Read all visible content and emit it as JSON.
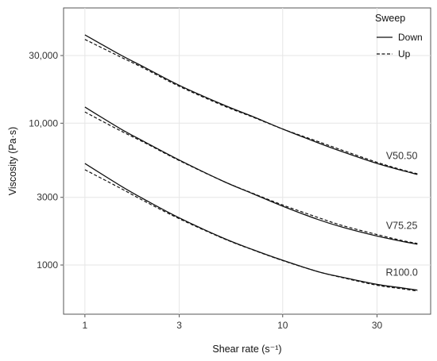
{
  "chart_data": {
    "type": "line",
    "xlabel": "Shear rate (s⁻¹)",
    "ylabel": "Viscosity (Pa·s)",
    "x_scale": "log",
    "y_scale": "log",
    "xlim": [
      0.78,
      56
    ],
    "ylim": [
      450,
      65000
    ],
    "x_ticks": [
      1,
      3,
      10,
      30
    ],
    "x_tick_labels": [
      "1",
      "3",
      "10",
      "30"
    ],
    "y_ticks": [
      1000,
      3000,
      10000,
      30000
    ],
    "y_tick_labels": [
      "1000",
      "3000",
      "10,000",
      "30,000"
    ],
    "grid": true,
    "legend": {
      "title": "Sweep",
      "placement": "top-right",
      "entries": [
        {
          "label": "Down",
          "dash": "solid"
        },
        {
          "label": "Up",
          "dash": "dashed"
        }
      ]
    },
    "curve_labels": [
      {
        "text": "V50.50",
        "x": 40,
        "y": 5600
      },
      {
        "text": "V75.25",
        "x": 40,
        "y": 1800
      },
      {
        "text": "R100.0",
        "x": 40,
        "y": 840
      }
    ],
    "series": [
      {
        "group": "V50.50",
        "sweep": "Down",
        "dash": "solid",
        "x": [
          1,
          1.5,
          2,
          3,
          5,
          7,
          10,
          15,
          20,
          30,
          40,
          48
        ],
        "y": [
          42000,
          30500,
          24800,
          18500,
          13500,
          11200,
          9100,
          7300,
          6300,
          5200,
          4650,
          4350
        ]
      },
      {
        "group": "V50.50",
        "sweep": "Up",
        "dash": "dashed",
        "x": [
          1,
          1.5,
          2,
          3,
          5,
          7,
          10,
          15,
          20,
          30,
          40,
          48
        ],
        "y": [
          39000,
          29500,
          24300,
          18200,
          13300,
          11100,
          9100,
          7450,
          6450,
          5300,
          4700,
          4400
        ]
      },
      {
        "group": "V75.25",
        "sweep": "Down",
        "dash": "solid",
        "x": [
          1,
          1.5,
          2,
          3,
          5,
          7,
          10,
          15,
          20,
          30,
          40,
          48
        ],
        "y": [
          13000,
          9200,
          7400,
          5500,
          3900,
          3200,
          2600,
          2100,
          1850,
          1600,
          1470,
          1400
        ]
      },
      {
        "group": "V75.25",
        "sweep": "Up",
        "dash": "dashed",
        "x": [
          1,
          1.5,
          2,
          3,
          5,
          7,
          10,
          15,
          20,
          30,
          40,
          48
        ],
        "y": [
          12000,
          8900,
          7300,
          5450,
          3900,
          3220,
          2650,
          2170,
          1900,
          1640,
          1490,
          1420
        ]
      },
      {
        "group": "R100.0",
        "sweep": "Down",
        "dash": "solid",
        "x": [
          1,
          1.5,
          2,
          3,
          5,
          7,
          10,
          15,
          20,
          30,
          40,
          48
        ],
        "y": [
          5200,
          3650,
          2900,
          2150,
          1550,
          1290,
          1080,
          900,
          820,
          730,
          690,
          665
        ]
      },
      {
        "group": "R100.0",
        "sweep": "Up",
        "dash": "dashed",
        "x": [
          1,
          1.5,
          2,
          3,
          5,
          7,
          10,
          15,
          20,
          30,
          40,
          48
        ],
        "y": [
          4700,
          3500,
          2820,
          2120,
          1540,
          1285,
          1075,
          900,
          815,
          720,
          680,
          655
        ]
      }
    ]
  }
}
